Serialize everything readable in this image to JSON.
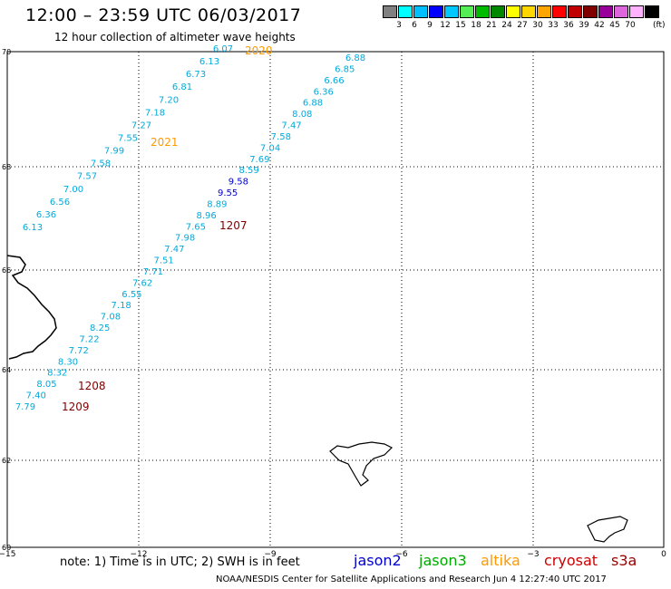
{
  "header": {
    "title": "12:00 – 23:59 UTC 06/03/2017",
    "subtitle": "12 hour collection of altimeter wave heights"
  },
  "colorbar": {
    "colors": [
      "#808080",
      "#00ffff",
      "#00bfff",
      "#0000ff",
      "#00c8ff",
      "#55ee55",
      "#00bb00",
      "#008800",
      "#ffff00",
      "#ffd700",
      "#ffa500",
      "#ff0000",
      "#c00000",
      "#800000",
      "#990099",
      "#dd66dd",
      "#ffb3ff",
      "#000000"
    ],
    "labels": [
      "3",
      "6",
      "9",
      "12",
      "15",
      "18",
      "21",
      "24",
      "27",
      "30",
      "33",
      "36",
      "39",
      "42",
      "45",
      "70"
    ],
    "unit": "(ft)"
  },
  "axes": {
    "lat_labels": [
      "70",
      "68",
      "66",
      "64",
      "62",
      "60"
    ],
    "lon_labels": [
      "−15",
      "−12",
      "−9",
      "−6",
      "−3",
      "0"
    ]
  },
  "tracks": [
    {
      "values": [
        "6.07",
        "6.13",
        "6.73",
        "6.81",
        "7.20",
        "7.18",
        "7.27",
        "7.55",
        "7.99",
        "7.58",
        "7.57",
        "7.00",
        "6.56",
        "6.36",
        "6.13"
      ],
      "time": "2020",
      "time2": "2021"
    },
    {
      "values": [
        "6.88",
        "6.85",
        "6.66",
        "6.36",
        "6.88",
        "8.08",
        "7.47",
        "7.58",
        "7.04",
        "7.69",
        "8.59",
        "9.58",
        "9.55",
        "8.89",
        "8.96",
        "7.65",
        "7.98",
        "7.47",
        "7.51",
        "7.71",
        "7.62",
        "6.55",
        "7.18",
        "7.08",
        "8.25",
        "7.22",
        "7.72",
        "8.30",
        "8.32",
        "8.05",
        "7.40",
        "7.79"
      ],
      "time": "1207",
      "time2": "1208",
      "time3": "1209"
    }
  ],
  "footer": {
    "note": "note:  1) Time is in UTC;  2) SWH is in feet",
    "satellites": [
      {
        "name": "jason2",
        "color": "#0000cc"
      },
      {
        "name": "jason3",
        "color": "#00aa00"
      },
      {
        "name": "altika",
        "color": "#ff9900"
      },
      {
        "name": "cryosat",
        "color": "#cc0000"
      },
      {
        "name": "s3a",
        "color": "#990000"
      }
    ],
    "credit": "NOAA/NESDIS Center for Satellite Applications and Research    Jun  4 12:27:40 UTC 2017"
  }
}
